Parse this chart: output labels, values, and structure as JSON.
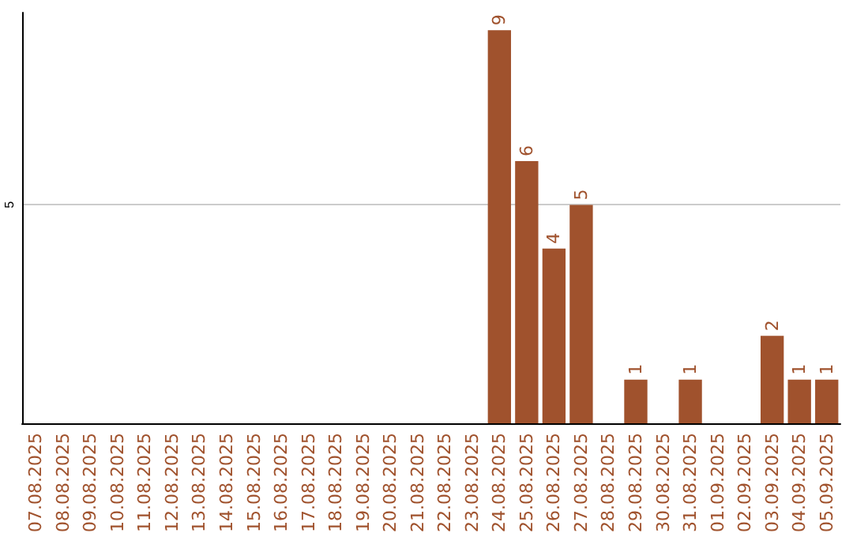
{
  "chart_data": {
    "type": "bar",
    "categories": [
      "07.08.2025",
      "08.08.2025",
      "09.08.2025",
      "10.08.2025",
      "11.08.2025",
      "12.08.2025",
      "13.08.2025",
      "14.08.2025",
      "15.08.2025",
      "16.08.2025",
      "17.08.2025",
      "18.08.2025",
      "19.08.2025",
      "20.08.2025",
      "21.08.2025",
      "22.08.2025",
      "23.08.2025",
      "24.08.2025",
      "25.08.2025",
      "26.08.2025",
      "27.08.2025",
      "28.08.2025",
      "29.08.2025",
      "30.08.2025",
      "31.08.2025",
      "01.09.2025",
      "02.09.2025",
      "03.09.2025",
      "04.09.2025",
      "05.09.2025"
    ],
    "values": [
      null,
      null,
      null,
      null,
      null,
      null,
      null,
      null,
      null,
      null,
      null,
      null,
      null,
      null,
      null,
      null,
      null,
      9,
      6,
      4,
      5,
      null,
      1,
      null,
      1,
      null,
      null,
      2,
      1,
      1
    ],
    "color": "#a0522d",
    "ylim": [
      0,
      9.4
    ],
    "yticks": [
      5
    ],
    "grid": "y",
    "data_labels": true
  }
}
